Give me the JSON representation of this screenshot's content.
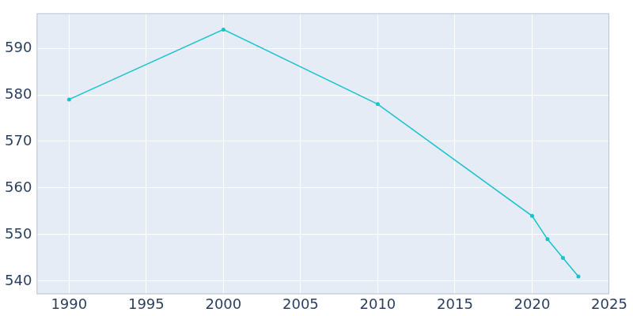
{
  "chart_data": {
    "type": "line",
    "x": [
      1990,
      2000,
      2010,
      2020,
      2021,
      2022,
      2023
    ],
    "values": [
      579,
      594,
      578,
      554,
      549,
      545,
      541
    ],
    "color": "#17c3cc",
    "marker": "circle",
    "xlim": [
      1987.9,
      2025
    ],
    "xticks": [
      1990,
      1995,
      2000,
      2005,
      2010,
      2015,
      2020,
      2025
    ],
    "ylim": [
      537.2,
      597.5
    ],
    "yticks": [
      540,
      550,
      560,
      570,
      580,
      590
    ],
    "grid": true
  }
}
